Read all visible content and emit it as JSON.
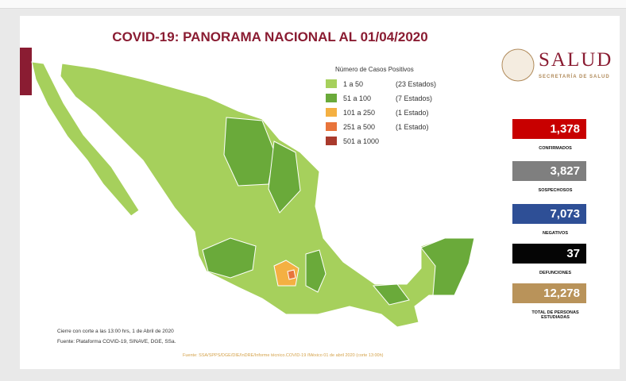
{
  "header": {
    "title": "COVID-19: PANORAMA NACIONAL AL 01/04/2020"
  },
  "logo": {
    "name": "SALUD",
    "subtitle": "SECRETARÍA DE SALUD"
  },
  "legend": {
    "title": "Número de Casos Positivos",
    "items": [
      {
        "range": "1 a 50",
        "count": "(23 Estados)",
        "color": "#a6d05c"
      },
      {
        "range": "51 a 100",
        "count": "(7 Estados)",
        "color": "#6aaa3a"
      },
      {
        "range": "101 a 250",
        "count": "(1 Estado)",
        "color": "#f4b042"
      },
      {
        "range": "251 a 500",
        "count": "(1 Estado)",
        "color": "#e8743b"
      },
      {
        "range": "501 a 1000",
        "color": "#a93a2c"
      }
    ]
  },
  "stats": [
    {
      "value": "1,378",
      "label": "CONFIRMADOS",
      "color": "#c80000"
    },
    {
      "value": "3,827",
      "label": "SOSPECHOSOS",
      "color": "#7f7f7f"
    },
    {
      "value": "7,073",
      "label": "NEGATIVOS",
      "color": "#2e4f96"
    },
    {
      "value": "37",
      "label": "DEFUNCIONES",
      "color": "#050505"
    },
    {
      "value": "12,278",
      "label": "TOTAL DE PERSONAS ESTUDIADAS",
      "color": "#b9935a"
    }
  ],
  "notes": [
    "Cierre con corte a las 13:00 hrs, 1 de Abril de 2020",
    "Fuente: Plataforma COVID-19, SINAVE, DGE, SSa."
  ],
  "source": "Fuente: SSA/SPPS/DGE/DIE/InDRE/Informe técnico.COVID-19 /México 01 de abril 2020 (corte 13:00h)"
}
